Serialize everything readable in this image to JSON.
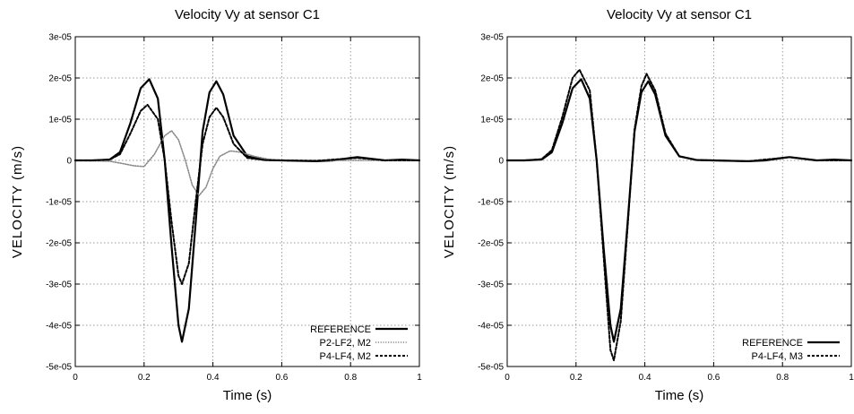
{
  "chart_data": [
    {
      "type": "line",
      "title": "Velocity Vy at sensor C1",
      "xlabel": "Time (s)",
      "ylabel": "VELOCITY (m/s)",
      "xlim": [
        0,
        1
      ],
      "ylim": [
        -5e-05,
        3e-05
      ],
      "xticks": [
        0,
        0.2,
        0.4,
        0.6,
        0.8,
        1
      ],
      "xtick_labels": [
        "0",
        "0.2",
        "0.4",
        "0.6",
        "0.8",
        "1"
      ],
      "yticks": [
        3e-05,
        2e-05,
        1e-05,
        0,
        -1e-05,
        -2e-05,
        -3e-05,
        -4e-05,
        -5e-05
      ],
      "ytick_labels": [
        "3e-05",
        "2e-05",
        "1e-05",
        "0",
        "-1e-05",
        "-2e-05",
        "-3e-05",
        "-4e-05",
        "-5e-05"
      ],
      "grid": true,
      "legend_position": "bottom-right",
      "series": [
        {
          "name": "REFERENCE",
          "style": "solid-thick",
          "color": "#000000",
          "x": [
            0,
            0.05,
            0.1,
            0.13,
            0.16,
            0.19,
            0.215,
            0.24,
            0.26,
            0.28,
            0.3,
            0.31,
            0.33,
            0.35,
            0.37,
            0.39,
            0.41,
            0.43,
            0.46,
            0.5,
            0.55,
            0.6,
            0.7,
            0.75,
            0.8,
            0.82,
            0.85,
            0.9,
            0.95,
            1
          ],
          "y": [
            0,
            0,
            2e-07,
            2e-06,
            9e-06,
            1.75e-05,
            1.97e-05,
            1.5e-05,
            0,
            -2.1e-05,
            -4e-05,
            -4.4e-05,
            -3.6e-05,
            -1.5e-05,
            7e-06,
            1.65e-05,
            1.92e-05,
            1.6e-05,
            6e-06,
            1e-06,
            1e-07,
            0,
            -2e-07,
            0,
            6e-07,
            8e-07,
            5e-07,
            0,
            2e-07,
            0
          ]
        },
        {
          "name": "P2-LF2, M2",
          "style": "dotted",
          "color": "#888888",
          "x": [
            0,
            0.1,
            0.14,
            0.17,
            0.2,
            0.23,
            0.26,
            0.28,
            0.3,
            0.32,
            0.34,
            0.36,
            0.38,
            0.4,
            0.42,
            0.45,
            0.48,
            0.52,
            0.56,
            0.6,
            0.7,
            0.8,
            0.9,
            1
          ],
          "y": [
            0,
            -2e-07,
            -8e-07,
            -1.3e-06,
            -1.5e-06,
            1.5e-06,
            6e-06,
            7.2e-06,
            5e-06,
            0,
            -6e-06,
            -8.5e-06,
            -6.5e-06,
            -2e-06,
            1e-06,
            2.3e-06,
            2e-06,
            1e-06,
            3e-07,
            0,
            0,
            0,
            0,
            0
          ]
        },
        {
          "name": "P4-LF4, M2",
          "style": "dashed",
          "color": "#000000",
          "x": [
            0,
            0.05,
            0.1,
            0.13,
            0.16,
            0.19,
            0.21,
            0.24,
            0.26,
            0.28,
            0.3,
            0.31,
            0.33,
            0.35,
            0.37,
            0.39,
            0.41,
            0.43,
            0.46,
            0.5,
            0.55,
            0.6,
            0.7,
            0.8,
            0.82,
            0.85,
            0.9,
            1
          ],
          "y": [
            0,
            0,
            2e-07,
            1.5e-06,
            6.5e-06,
            1.2e-05,
            1.35e-05,
            1e-05,
            0,
            -1.5e-05,
            -2.8e-05,
            -3e-05,
            -2.5e-05,
            -1e-05,
            4e-06,
            1.05e-05,
            1.28e-05,
            1.05e-05,
            4e-06,
            6e-07,
            1e-07,
            0,
            -1e-07,
            5e-07,
            6e-07,
            4e-07,
            0,
            0
          ]
        }
      ]
    },
    {
      "type": "line",
      "title": "Velocity Vy at sensor C1",
      "xlabel": "Time (s)",
      "ylabel": "VELOCITY (m/s)",
      "xlim": [
        0,
        1
      ],
      "ylim": [
        -5e-05,
        3e-05
      ],
      "xticks": [
        0,
        0.2,
        0.4,
        0.6,
        0.8,
        1
      ],
      "xtick_labels": [
        "0",
        "0.2",
        "0.4",
        "0.6",
        "0.8",
        "1"
      ],
      "yticks": [
        3e-05,
        2e-05,
        1e-05,
        0,
        -1e-05,
        -2e-05,
        -3e-05,
        -4e-05,
        -5e-05
      ],
      "ytick_labels": [
        "3e-05",
        "2e-05",
        "1e-05",
        "0",
        "-1e-05",
        "-2e-05",
        "-3e-05",
        "-4e-05",
        "-5e-05"
      ],
      "grid": true,
      "legend_position": "bottom-right",
      "series": [
        {
          "name": "REFERENCE",
          "style": "solid-thick",
          "color": "#000000",
          "x": [
            0,
            0.05,
            0.1,
            0.13,
            0.16,
            0.19,
            0.215,
            0.24,
            0.26,
            0.28,
            0.3,
            0.31,
            0.33,
            0.35,
            0.37,
            0.39,
            0.41,
            0.43,
            0.46,
            0.5,
            0.55,
            0.6,
            0.7,
            0.75,
            0.8,
            0.82,
            0.85,
            0.9,
            0.95,
            1
          ],
          "y": [
            0,
            0,
            2e-07,
            2e-06,
            9e-06,
            1.75e-05,
            1.97e-05,
            1.5e-05,
            0,
            -2.1e-05,
            -4e-05,
            -4.4e-05,
            -3.6e-05,
            -1.5e-05,
            7e-06,
            1.65e-05,
            1.92e-05,
            1.6e-05,
            6e-06,
            1e-06,
            1e-07,
            0,
            -2e-07,
            0,
            6e-07,
            8e-07,
            5e-07,
            0,
            2e-07,
            0
          ]
        },
        {
          "name": "P4-LF4, M3",
          "style": "dashed",
          "color": "#000000",
          "x": [
            0,
            0.05,
            0.1,
            0.13,
            0.16,
            0.19,
            0.21,
            0.24,
            0.26,
            0.28,
            0.3,
            0.31,
            0.33,
            0.35,
            0.37,
            0.39,
            0.405,
            0.43,
            0.46,
            0.5,
            0.55,
            0.6,
            0.7,
            0.8,
            0.82,
            0.85,
            0.9,
            1
          ],
          "y": [
            0,
            0,
            3e-07,
            2.5e-06,
            1.05e-05,
            2e-05,
            2.2e-05,
            1.7e-05,
            0,
            -2.3e-05,
            -4.6e-05,
            -4.85e-05,
            -3.9e-05,
            -1.6e-05,
            7.5e-06,
            1.8e-05,
            2.1e-05,
            1.7e-05,
            6.5e-06,
            1e-06,
            1e-07,
            0,
            -2e-07,
            6e-07,
            8e-07,
            5e-07,
            0,
            0
          ]
        }
      ]
    }
  ]
}
